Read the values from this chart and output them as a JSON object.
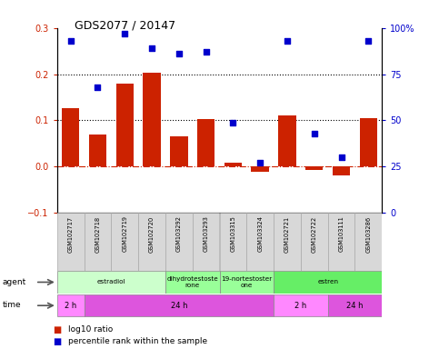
{
  "title": "GDS2077 / 20147",
  "samples": [
    "GSM102717",
    "GSM102718",
    "GSM102719",
    "GSM102720",
    "GSM103292",
    "GSM103293",
    "GSM103315",
    "GSM103324",
    "GSM102721",
    "GSM102722",
    "GSM103111",
    "GSM103286"
  ],
  "log10_ratio": [
    0.127,
    0.069,
    0.18,
    0.203,
    0.065,
    0.103,
    0.008,
    -0.012,
    0.11,
    -0.008,
    -0.018,
    0.105
  ],
  "percentile": [
    93,
    68,
    97,
    89,
    86,
    87,
    49,
    27,
    93,
    43,
    30,
    93
  ],
  "ylim_left": [
    -0.1,
    0.3
  ],
  "ylim_right": [
    0,
    100
  ],
  "yticks_left": [
    -0.1,
    0.0,
    0.1,
    0.2,
    0.3
  ],
  "yticks_right": [
    0,
    25,
    50,
    75,
    100
  ],
  "hlines": [
    0.1,
    0.2
  ],
  "bar_color": "#cc2200",
  "scatter_color": "#0000cc",
  "zero_line_color": "#cc2200",
  "background_color": "#ffffff",
  "agent_row": [
    {
      "label": "estradiol",
      "start": 0,
      "end": 4,
      "color": "#ccffcc"
    },
    {
      "label": "dihydrotestoste\nrone",
      "start": 4,
      "end": 6,
      "color": "#99ff99"
    },
    {
      "label": "19-nortestoster\none",
      "start": 6,
      "end": 8,
      "color": "#99ff99"
    },
    {
      "label": "estren",
      "start": 8,
      "end": 12,
      "color": "#66ee66"
    }
  ],
  "time_row": [
    {
      "label": "2 h",
      "start": 0,
      "end": 1,
      "color": "#ff88ff"
    },
    {
      "label": "24 h",
      "start": 1,
      "end": 8,
      "color": "#dd55dd"
    },
    {
      "label": "2 h",
      "start": 8,
      "end": 10,
      "color": "#ff88ff"
    },
    {
      "label": "24 h",
      "start": 10,
      "end": 12,
      "color": "#dd55dd"
    }
  ],
  "legend_items": [
    {
      "label": "log10 ratio",
      "color": "#cc2200"
    },
    {
      "label": "percentile rank within the sample",
      "color": "#0000cc"
    }
  ]
}
